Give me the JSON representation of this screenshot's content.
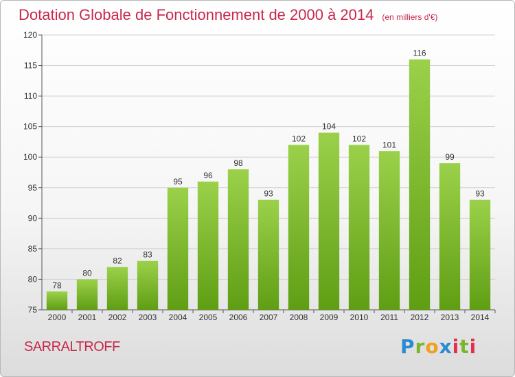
{
  "header": {
    "title": "Dotation Globale de Fonctionnement de 2000 à 2014",
    "unit_note": "(en milliers d'€)"
  },
  "footer": {
    "commune": "SARRALTROFF",
    "logo_text": "Proxiti"
  },
  "colors": {
    "title": "#c8284b",
    "bar_top": "#9bd14a",
    "bar_bottom": "#5f9e14",
    "grid": "#d0d0d0"
  },
  "chart_data": {
    "type": "bar",
    "title": "Dotation Globale de Fonctionnement de 2000 à 2014",
    "subtitle": "(en milliers d'€)",
    "xlabel": "",
    "ylabel": "",
    "categories": [
      "2000",
      "2001",
      "2002",
      "2003",
      "2004",
      "2005",
      "2006",
      "2007",
      "2008",
      "2009",
      "2010",
      "2011",
      "2012",
      "2013",
      "2014"
    ],
    "values": [
      78,
      80,
      82,
      83,
      95,
      96,
      98,
      93,
      102,
      104,
      102,
      101,
      116,
      99,
      93
    ],
    "ylim": [
      75,
      120
    ],
    "yticks": [
      75,
      80,
      85,
      90,
      95,
      100,
      105,
      110,
      115,
      120
    ],
    "grid": true,
    "legend": "none"
  }
}
